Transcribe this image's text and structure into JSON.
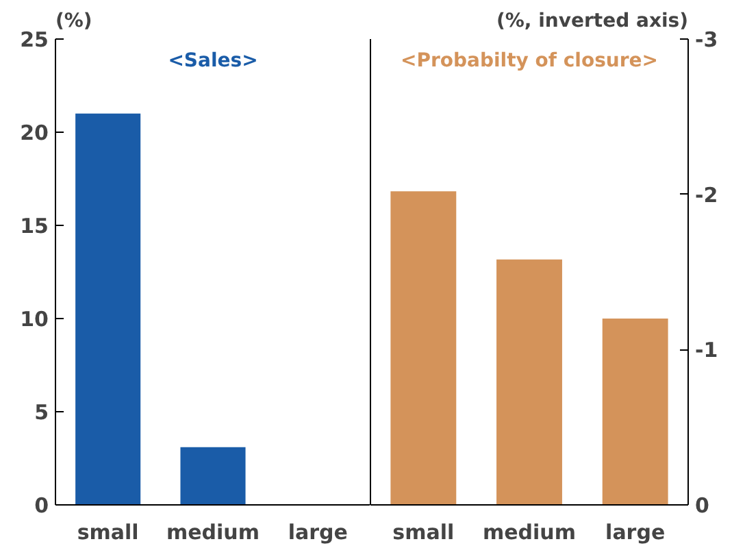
{
  "chart_data": [
    {
      "type": "bar",
      "title": "<Sales>",
      "ylabel": "(%)",
      "categories": [
        "small",
        "medium",
        "large"
      ],
      "series": [
        {
          "color": "#1a5ca8",
          "values": [
            21.0,
            3.1,
            0
          ]
        }
      ],
      "ylim": [
        0,
        25
      ],
      "yticks": [
        0,
        5,
        10,
        15,
        20,
        25
      ],
      "grid": false
    },
    {
      "type": "bar",
      "title": "<Probabilty of closure>",
      "y2label": "(%, inverted axis)",
      "categories": [
        "small",
        "medium",
        "large"
      ],
      "series": [
        {
          "color": "#d4935a",
          "values": [
            -2.02,
            -1.58,
            -1.2
          ],
          "axis": "y2"
        }
      ],
      "y2lim": [
        0,
        -3
      ],
      "y2ticks": [
        0,
        -1,
        -2,
        -3
      ],
      "grid": false
    }
  ]
}
